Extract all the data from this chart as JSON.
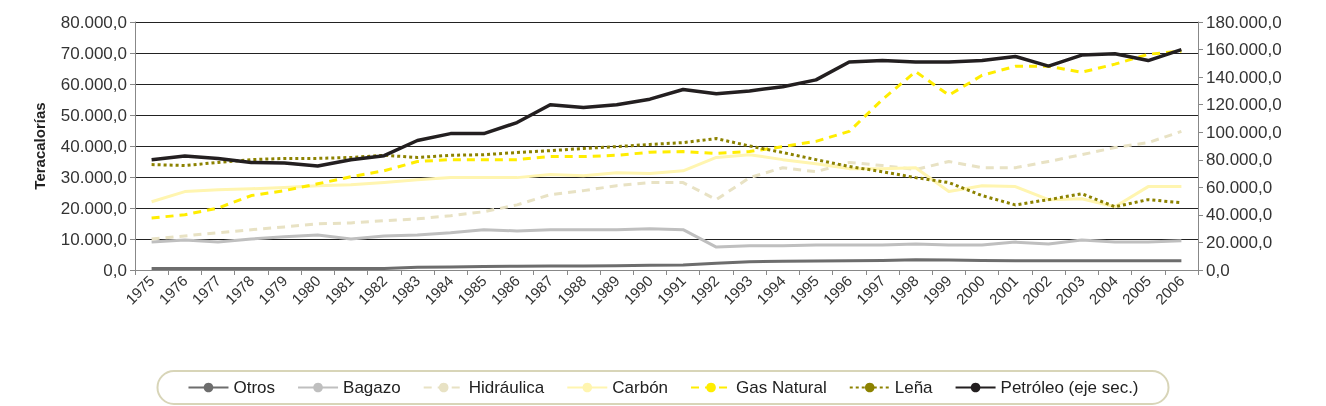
{
  "chart_data": {
    "type": "line",
    "ylabel": "Teracalorías",
    "categories": [
      "1975",
      "1976",
      "1977",
      "1978",
      "1979",
      "1980",
      "1981",
      "1982",
      "1983",
      "1984",
      "1985",
      "1986",
      "1987",
      "1988",
      "1989",
      "1990",
      "1991",
      "1992",
      "1993",
      "1994",
      "1995",
      "1996",
      "1997",
      "1998",
      "1999",
      "2000",
      "2001",
      "2002",
      "2003",
      "2004",
      "2005",
      "2006"
    ],
    "series": [
      {
        "name": "Otros",
        "color": "#6d6d6d",
        "line_style": "solid",
        "values": [
          500,
          500,
          500,
          500,
          500,
          500,
          500,
          500,
          900,
          1000,
          1100,
          1200,
          1300,
          1300,
          1400,
          1500,
          1600,
          2200,
          2700,
          2800,
          2900,
          3000,
          3100,
          3300,
          3200,
          3100,
          3000,
          3000,
          3000,
          3000,
          3000,
          3000
        ]
      },
      {
        "name": "Bagazo",
        "color": "#bfbfbf",
        "line_style": "solid",
        "values": [
          9000,
          9700,
          9000,
          10000,
          10700,
          11300,
          10000,
          11000,
          11300,
          12000,
          13000,
          12600,
          13000,
          13000,
          13000,
          13300,
          13000,
          7400,
          7800,
          7800,
          8100,
          8100,
          8100,
          8400,
          8100,
          8100,
          9000,
          8400,
          9700,
          9000,
          9000,
          9400
        ]
      },
      {
        "name": "Hidráulica",
        "color": "#e8e2c4",
        "line_style": "dashed",
        "values": [
          10000,
          11000,
          12000,
          13000,
          13900,
          14900,
          15200,
          15900,
          16500,
          17500,
          18800,
          21000,
          24300,
          25600,
          27200,
          28200,
          28200,
          22700,
          29800,
          33000,
          31700,
          34700,
          33700,
          32400,
          35000,
          33000,
          33000,
          35000,
          37200,
          39500,
          41100,
          44700
        ]
      },
      {
        "name": "Carbón",
        "color": "#fff5b0",
        "line_style": "solid",
        "values": [
          22000,
          25300,
          25900,
          26200,
          26600,
          27200,
          27500,
          28200,
          29100,
          29800,
          29800,
          29800,
          30800,
          30400,
          31400,
          31100,
          32000,
          36300,
          37200,
          35600,
          34300,
          32700,
          32700,
          33000,
          25300,
          27200,
          26900,
          22700,
          23000,
          20400,
          26900,
          26900
        ]
      },
      {
        "name": "Gas Natural",
        "color": "#ffed00",
        "line_style": "dashed",
        "values": [
          16800,
          17800,
          20000,
          24000,
          25600,
          27800,
          30100,
          32000,
          35000,
          35600,
          35600,
          35600,
          36600,
          36600,
          37000,
          38000,
          38200,
          37600,
          38200,
          39800,
          41500,
          44700,
          55000,
          64000,
          56400,
          62800,
          65700,
          65700,
          63800,
          66400,
          69600,
          70600
        ]
      },
      {
        "name": "Leña",
        "color": "#8c8200",
        "line_style": "dotted",
        "values": [
          34000,
          33700,
          34700,
          35600,
          36000,
          36000,
          36300,
          37000,
          36300,
          37000,
          37200,
          37900,
          38500,
          39200,
          39800,
          40500,
          41100,
          42400,
          40000,
          37900,
          35600,
          33400,
          31700,
          29800,
          28200,
          24000,
          21000,
          22700,
          24600,
          20400,
          22700,
          21700
        ]
      },
      {
        "name": "Petróleo (eje sec.)",
        "color": "#231f20",
        "line_style": "solid",
        "axis": "y2",
        "values": [
          80000,
          82700,
          81000,
          78000,
          77600,
          75500,
          80000,
          83000,
          94000,
          99000,
          99000,
          107000,
          120000,
          118000,
          120000,
          124000,
          131000,
          128000,
          130000,
          133000,
          138000,
          151000,
          152000,
          151000,
          151000,
          152000,
          155000,
          148000,
          156000,
          157000,
          152000,
          160000
        ]
      }
    ],
    "ylim": [
      0,
      80000
    ],
    "yticks": [
      {
        "value": 0,
        "label": "0,0"
      },
      {
        "value": 10000,
        "label": "10.000,0"
      },
      {
        "value": 20000,
        "label": "20.000,0"
      },
      {
        "value": 30000,
        "label": "30.000,0"
      },
      {
        "value": 40000,
        "label": "40.000,0"
      },
      {
        "value": 50000,
        "label": "50.000,0"
      },
      {
        "value": 60000,
        "label": "60.000,0"
      },
      {
        "value": 70000,
        "label": "70.000,0"
      },
      {
        "value": 80000,
        "label": "80.000,0"
      }
    ],
    "y2lim": [
      0,
      180000
    ],
    "y2ticks": [
      {
        "value": 0,
        "label": "0,0"
      },
      {
        "value": 20000,
        "label": "20.000,0"
      },
      {
        "value": 40000,
        "label": "40.000,0"
      },
      {
        "value": 60000,
        "label": "60.000,0"
      },
      {
        "value": 80000,
        "label": "80.000,0"
      },
      {
        "value": 100000,
        "label": "100.000,0"
      },
      {
        "value": 120000,
        "label": "120.000,0"
      },
      {
        "value": 140000,
        "label": "140.000,0"
      },
      {
        "value": 160000,
        "label": "160.000,0"
      },
      {
        "value": 180000,
        "label": "180.000,0"
      }
    ],
    "grid": "y",
    "legend": "bottom",
    "marker": "none"
  }
}
